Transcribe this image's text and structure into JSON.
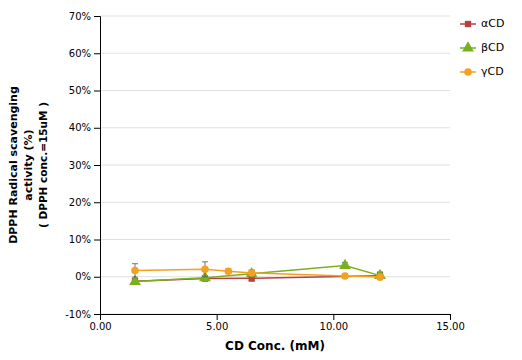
{
  "chart_data": {
    "type": "line",
    "xlabel": "CD Conc. (mM)",
    "ylabel": [
      "DPPH Radical scavenging",
      "activity (%)",
      "( DPPH conc.=15uM )"
    ],
    "xlim": [
      0.0,
      15.0
    ],
    "ylim": [
      -0.1,
      0.7
    ],
    "xticks": [
      {
        "value": 0.0,
        "label": "0.00"
      },
      {
        "value": 5.0,
        "label": "5.00"
      },
      {
        "value": 10.0,
        "label": "10.00"
      },
      {
        "value": 15.0,
        "label": "15.00"
      }
    ],
    "yticks": [
      {
        "value": -0.1,
        "label": "-10%"
      },
      {
        "value": 0.0,
        "label": "0%"
      },
      {
        "value": 0.1,
        "label": "10%"
      },
      {
        "value": 0.2,
        "label": "20%"
      },
      {
        "value": 0.3,
        "label": "30%"
      },
      {
        "value": 0.4,
        "label": "40%"
      },
      {
        "value": 0.5,
        "label": "50%"
      },
      {
        "value": 0.6,
        "label": "60%"
      },
      {
        "value": 0.7,
        "label": "70%"
      }
    ],
    "grid": "y",
    "legend": "right",
    "series": [
      {
        "name": "αCD",
        "color": "#b94040",
        "marker": "square",
        "x": [
          1.5,
          4.5,
          6.5,
          12.0
        ],
        "values": [
          -0.012,
          -0.005,
          -0.004,
          0.003
        ],
        "yerr": [
          0.006,
          0.005,
          0.008,
          0.01
        ]
      },
      {
        "name": "βCD",
        "color": "#7ab020",
        "marker": "triangle",
        "x": [
          1.5,
          4.5,
          6.5,
          10.5,
          12.0
        ],
        "values": [
          -0.013,
          -0.003,
          0.008,
          0.03,
          0.003
        ],
        "yerr": [
          0.006,
          0.005,
          0.008,
          0.008,
          0.008
        ]
      },
      {
        "name": "γCD",
        "color": "#f5a020",
        "marker": "circle",
        "x": [
          1.5,
          4.5,
          5.5,
          6.5,
          10.5,
          12.0
        ],
        "values": [
          0.017,
          0.02,
          0.015,
          0.01,
          0.002,
          -0.001
        ],
        "yerr": [
          0.018,
          0.02,
          0.006,
          0.008,
          0.006,
          0.007
        ]
      }
    ]
  }
}
